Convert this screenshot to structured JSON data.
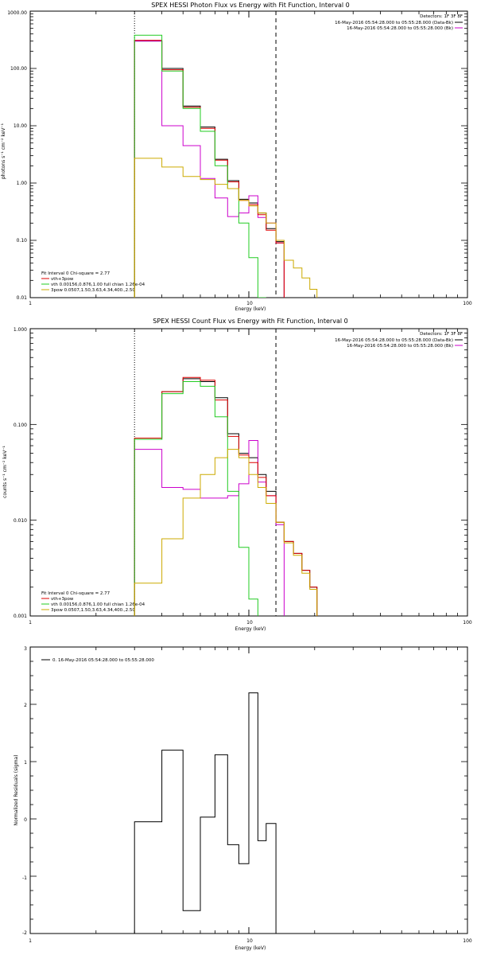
{
  "bg": "#ffffff",
  "panels": [
    {
      "title": "SPEX HESSI Photon Flux vs Energy with Fit Function, Interval 0",
      "xlabel": "Energy (keV)",
      "ylabel": "photons s⁻¹ cm⁻² keV⁻¹",
      "legend_top": [
        {
          "text": "Detectors: 1F 3F 8F",
          "color": null
        },
        {
          "text": "16-May-2016 05:54:28.000 to 05:55:28.000 (Data-Bk)",
          "color": "#000000"
        },
        {
          "text": "16-May-2016 05:54:28.000 to 05:55:28.000 (Bk)",
          "color": "#cc00cc"
        }
      ],
      "legend_bottom": [
        {
          "text": "Fit Interval 0   Chi-square = 2.77",
          "color": null
        },
        {
          "text": "vth+3pow",
          "color": "#dd0000"
        },
        {
          "text": "vth 0.00156,0.876,1.00  full chian 1.26e-04",
          "color": "#22cc22"
        },
        {
          "text": "3pow 0.0507,1.50,3.63,4.34,400.,2.50",
          "color": "#ccaa00"
        }
      ],
      "y_ticklabels": [
        "0.01",
        "0.10",
        "1.00",
        "10.00",
        "100.00",
        "1000.00"
      ]
    },
    {
      "title": "SPEX HESSI Count Flux vs Energy with Fit Function, Interval 0",
      "xlabel": "Energy (keV)",
      "ylabel": "counts s⁻¹ cm⁻² keV⁻¹",
      "legend_top": [
        {
          "text": "Detectors: 1F 3F 8F",
          "color": null
        },
        {
          "text": "16-May-2016 05:54:28.000 to 05:55:28.000 (Data-Bk)",
          "color": "#000000"
        },
        {
          "text": "16-May-2016 05:54:28.000 to 05:55:28.000 (Bk)",
          "color": "#cc00cc"
        }
      ],
      "legend_bottom": [
        {
          "text": "Fit Interval 0   Chi-square = 2.77",
          "color": null
        },
        {
          "text": "vth+3pow",
          "color": "#dd0000"
        },
        {
          "text": "vth 0.00156,0.876,1.00  full chian 1.26e-04",
          "color": "#22cc22"
        },
        {
          "text": "3pow 0.0507,1.50,3.63,4.34,400.,2.50",
          "color": "#ccaa00"
        }
      ],
      "y_ticklabels": [
        "0.001",
        "0.010",
        "0.100",
        "1.000"
      ]
    },
    {
      "title": "",
      "xlabel": "Energy (keV)",
      "ylabel": "Normalized Residuals (sigma)",
      "legend_top_left": "0. 16-May-2016 05:54:28.000 to 05:55:28.000",
      "y_ticklabels": [
        "-2",
        "-1",
        "0",
        "1",
        "2",
        "3"
      ]
    }
  ],
  "x_ticklabels": [
    "1",
    "10",
    "100"
  ],
  "chart_data": [
    {
      "type": "line",
      "step": true,
      "xscale": "log",
      "yscale": "log",
      "xlim": [
        1,
        100
      ],
      "ylim": [
        0.01,
        1000
      ],
      "grid": false,
      "vlines": [
        {
          "x": 3,
          "style": "dotted"
        },
        {
          "x": 13.3,
          "style": "dashed"
        }
      ],
      "edges": [
        3.0,
        4.0,
        5.0,
        6.0,
        7.0,
        8.0,
        9.0,
        10.0,
        11.0,
        12.0,
        13.3,
        14.5,
        16.0,
        17.5,
        19.0,
        20.5
      ],
      "series": [
        {
          "name": "Data-Bk",
          "color": "#000000",
          "values": [
            300,
            100,
            22,
            9.5,
            2.6,
            1.1,
            0.52,
            0.45,
            0.3,
            0.16,
            0.095
          ]
        },
        {
          "name": "Bk",
          "color": "#cc00cc",
          "values": [
            300,
            10,
            4.5,
            1.2,
            0.55,
            0.26,
            0.3,
            0.6,
            0.25,
            0.2,
            0.09
          ]
        },
        {
          "name": "vth+3pow",
          "color": "#dd0000",
          "values": [
            310,
            95,
            21,
            9,
            2.5,
            1.05,
            0.5,
            0.42,
            0.28,
            0.15,
            0.09
          ]
        },
        {
          "name": "vth",
          "color": "#22cc22",
          "values": [
            380,
            90,
            20,
            8,
            2,
            0.8,
            0.2,
            0.05,
            0.01
          ]
        },
        {
          "name": "3pow",
          "color": "#ccaa00",
          "values": [
            2.7,
            1.9,
            1.3,
            1.15,
            0.95,
            0.8,
            0.5,
            0.4,
            0.3,
            0.2,
            0.1,
            0.045,
            0.033,
            0.022,
            0.014
          ]
        }
      ]
    },
    {
      "type": "line",
      "step": true,
      "xscale": "log",
      "yscale": "log",
      "xlim": [
        1,
        100
      ],
      "ylim": [
        0.001,
        1
      ],
      "grid": false,
      "vlines": [
        {
          "x": 3,
          "style": "dotted"
        },
        {
          "x": 13.3,
          "style": "dashed"
        }
      ],
      "edges": [
        3.0,
        4.0,
        5.0,
        6.0,
        7.0,
        8.0,
        9.0,
        10.0,
        11.0,
        12.0,
        13.3,
        14.5,
        16.0,
        17.5,
        19.0,
        20.5
      ],
      "series": [
        {
          "name": "Data-Bk",
          "color": "#000000",
          "values": [
            0.07,
            0.22,
            0.3,
            0.28,
            0.19,
            0.08,
            0.05,
            0.045,
            0.03,
            0.02,
            0.0095,
            0.006,
            0.0045,
            0.003,
            0.002
          ]
        },
        {
          "name": "Bk",
          "color": "#cc00cc",
          "values": [
            0.055,
            0.022,
            0.021,
            0.017,
            0.017,
            0.018,
            0.024,
            0.068,
            0.025,
            0.018,
            0.009
          ]
        },
        {
          "name": "vth+3pow",
          "color": "#dd0000",
          "values": [
            0.072,
            0.22,
            0.31,
            0.29,
            0.18,
            0.075,
            0.048,
            0.04,
            0.028,
            0.018,
            0.0095,
            0.006,
            0.0045,
            0.003,
            0.002
          ]
        },
        {
          "name": "vth",
          "color": "#22cc22",
          "values": [
            0.07,
            0.21,
            0.28,
            0.25,
            0.12,
            0.02,
            0.0052,
            0.0015
          ]
        },
        {
          "name": "3pow",
          "color": "#ccaa00",
          "values": [
            0.0022,
            0.0064,
            0.017,
            0.03,
            0.045,
            0.055,
            0.045,
            0.03,
            0.022,
            0.015,
            0.0095,
            0.0058,
            0.0043,
            0.0028,
            0.0019
          ]
        }
      ]
    },
    {
      "type": "line",
      "step": true,
      "xscale": "log",
      "yscale": "linear",
      "xlim": [
        1,
        100
      ],
      "ylim": [
        -2,
        3
      ],
      "grid": false,
      "edges": [
        3.0,
        4.0,
        5.0,
        6.0,
        7.0,
        8.0,
        9.0,
        10.0,
        11.0,
        12.0,
        13.3
      ],
      "series": [
        {
          "name": "residuals",
          "color": "#000000",
          "values": [
            -0.05,
            1.2,
            -1.6,
            0.03,
            1.12,
            -0.45,
            -0.78,
            2.2,
            -0.38,
            -0.08
          ]
        }
      ]
    }
  ]
}
